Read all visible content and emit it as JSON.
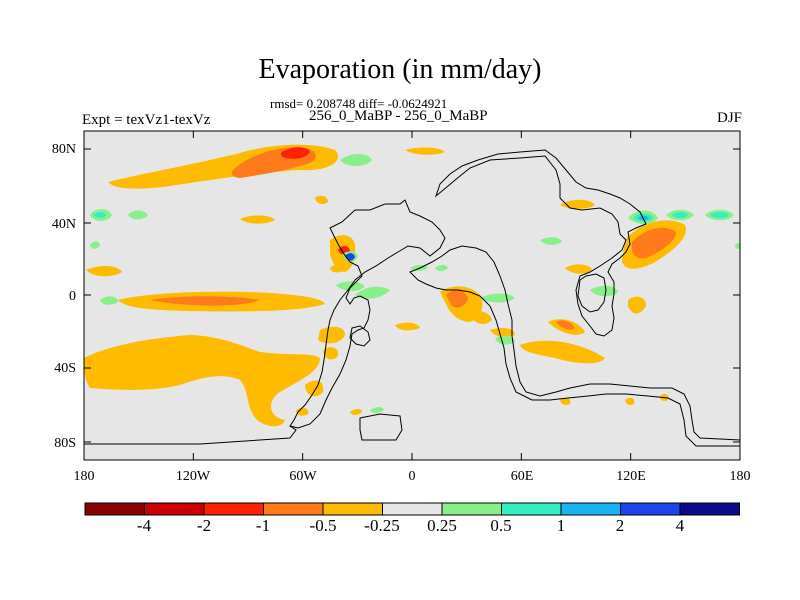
{
  "title": "Evaporation (in mm/day)",
  "stats_line": "rmsd= 0.208748 diff= -0.0624921",
  "case_line": "256_0_MaBP - 256_0_MaBP",
  "expt_line": "Expt = texVz1-texVz",
  "season": "DJF",
  "map": {
    "background_color": "#e6e6e6",
    "x_ticks": [
      "180",
      "120W",
      "60W",
      "0",
      "60E",
      "120E",
      "180"
    ],
    "y_ticks": [
      "80N",
      "40N",
      "0",
      "40S",
      "80S"
    ]
  },
  "colorbar": {
    "colors": [
      "#8b0000",
      "#cc0000",
      "#ff2200",
      "#ff7a1a",
      "#ffbb00",
      "#e6e6e6",
      "#88f088",
      "#33eec0",
      "#1ab4f5",
      "#1a44ee",
      "#0a0a88"
    ],
    "labels": [
      "-4",
      "-2",
      "-1",
      "-0.5",
      "-0.25",
      "0.25",
      "0.5",
      "1",
      "2",
      "4"
    ]
  }
}
